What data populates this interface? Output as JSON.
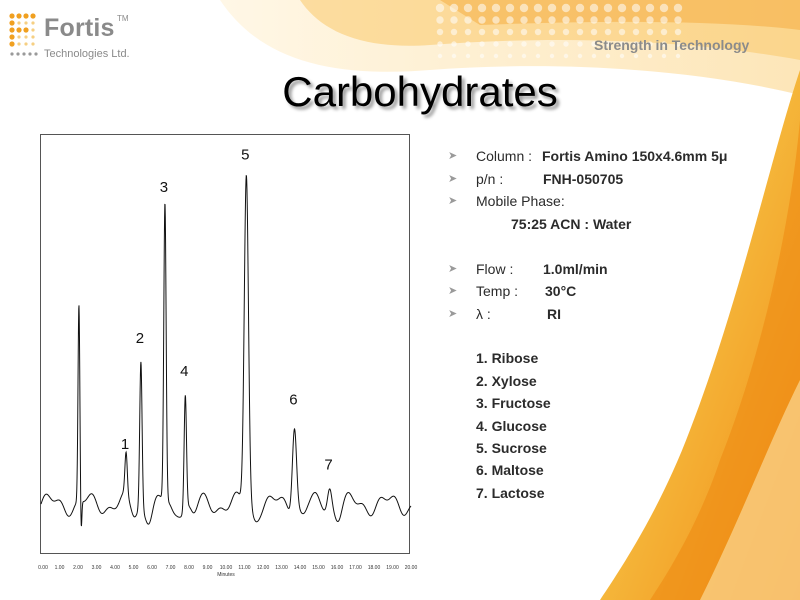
{
  "brand": {
    "name": "Fortis",
    "tm": "TM",
    "subtitle": "Technologies Ltd.",
    "tagline": "Strength in Technology",
    "accent_color": "#f0a020",
    "logo_icon": "dot-grid-logo-icon"
  },
  "slide": {
    "title": "Carbohydrates"
  },
  "info": {
    "column_label": "Column :",
    "column_value": "Fortis Amino 150x4.6mm 5μ",
    "pn_label": "p/n :",
    "pn_value": "FNH-050705",
    "mobile_phase_label": "Mobile Phase:",
    "mobile_phase_value": "75:25  ACN : Water",
    "flow_label": "Flow :",
    "flow_value": "1.0ml/min",
    "temp_label": "Temp :",
    "temp_value": "30°C",
    "lambda_label": "λ :",
    "lambda_value": "RI",
    "bullet_icon": "arrow-bullet-icon",
    "compounds": [
      "1. Ribose",
      "2. Xylose",
      "3. Fructose",
      "4. Glucose",
      "5. Sucrose",
      "6. Maltose",
      "7. Lactose"
    ]
  },
  "chart_data": {
    "type": "line",
    "title": "",
    "xlabel": "Minutes",
    "ylabel": "",
    "xlim": [
      0,
      20
    ],
    "ylim": [
      0,
      1
    ],
    "grid": false,
    "x_ticks": [
      "0.00",
      "1.00",
      "2.00",
      "3.00",
      "4.00",
      "5.00",
      "6.00",
      "7.00",
      "8.00",
      "9.00",
      "10.00",
      "11.00",
      "12.00",
      "13.00",
      "14.00",
      "15.00",
      "16.00",
      "17.00",
      "18.00",
      "19.00",
      "20.00"
    ],
    "baseline": 0.12,
    "solvent_peak": {
      "x": 2.05,
      "height": 0.6,
      "dip": -0.08
    },
    "peaks": [
      {
        "label": "1",
        "x": 4.6,
        "height": 0.22
      },
      {
        "label": "2",
        "x": 5.4,
        "height": 0.48
      },
      {
        "label": "3",
        "x": 6.7,
        "height": 0.85
      },
      {
        "label": "4",
        "x": 7.8,
        "height": 0.4
      },
      {
        "label": "5",
        "x": 11.1,
        "height": 0.93
      },
      {
        "label": "6",
        "x": 13.7,
        "height": 0.33
      },
      {
        "label": "7",
        "x": 15.6,
        "height": 0.17
      }
    ]
  }
}
